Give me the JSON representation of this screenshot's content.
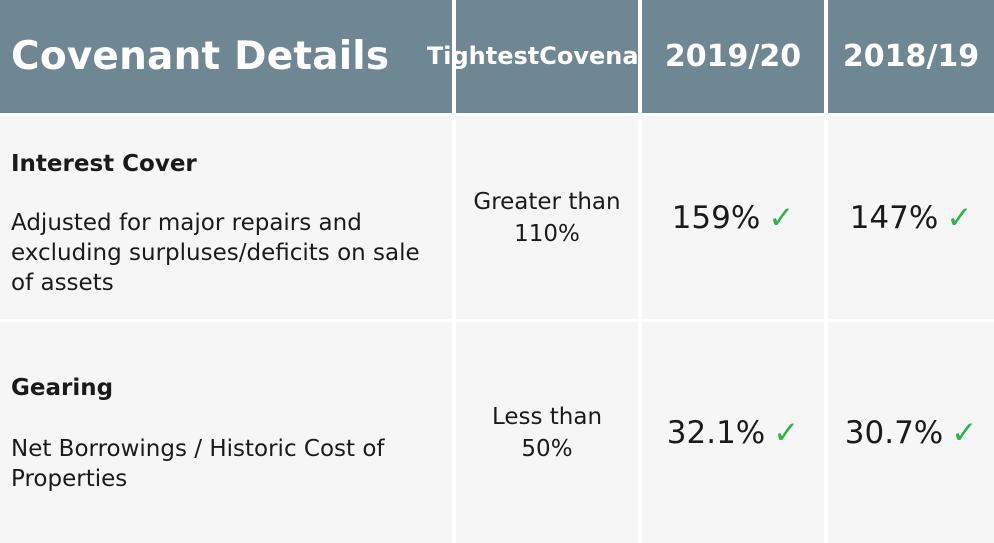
{
  "header": {
    "title": "Covenant Details",
    "tightest_line1": "Tightest",
    "tightest_line2": "Covenant",
    "year1": "2019/20",
    "year2": "2018/19"
  },
  "rows": [
    {
      "name": "Interest Cover",
      "description": "Adjusted for major repairs and excluding surpluses/deficits on sale of assets",
      "tightest_line1": "Greater than",
      "tightest_line2": "110%",
      "value1": "159%",
      "value2": "147%",
      "tick": "✓"
    },
    {
      "name": "Gearing",
      "description": "Net Borrowings / Historic Cost of Properties",
      "tightest_line1": "Less than",
      "tightest_line2": "50%",
      "value1": "32.1%",
      "value2": "30.7%",
      "tick": "✓"
    }
  ],
  "colors": {
    "header_bg": "#6e8793",
    "cell_bg": "#f6f6f6",
    "tick": "#2eb24a"
  },
  "icons": {
    "tick": "check-icon"
  }
}
